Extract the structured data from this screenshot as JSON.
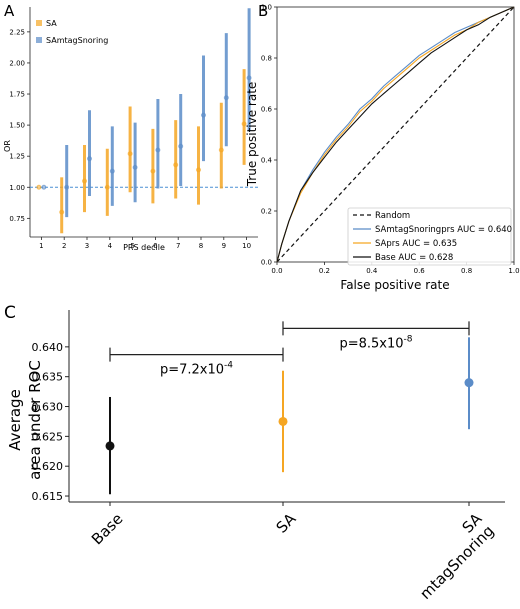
{
  "colors": {
    "sa": "#f5a623",
    "sam": "#5b8cc8",
    "base": "#111111",
    "random": "#111111",
    "ref": "#4a8fd4"
  },
  "chart_data": [
    {
      "panel_label": "A",
      "type": "scatter",
      "xlabel": "PRS decile",
      "ylabel": "OR",
      "xlim": [
        0.5,
        10.5
      ],
      "ylim": [
        0.6,
        2.45
      ],
      "x_ticks": [
        "1",
        "2",
        "3",
        "4",
        "5",
        "6",
        "7",
        "8",
        "9",
        "10"
      ],
      "y_ticks": [
        "0.75",
        "1.00",
        "1.25",
        "1.50",
        "1.75",
        "2.00",
        "2.25"
      ],
      "reference_line": 1.0,
      "legend_position": "top-left",
      "series": [
        {
          "name": "SA",
          "color": "#f5a623",
          "points": [
            {
              "x": 1,
              "y": 1.0,
              "lo": 1.0,
              "hi": 1.0
            },
            {
              "x": 2,
              "y": 0.8,
              "lo": 0.63,
              "hi": 1.08
            },
            {
              "x": 3,
              "y": 1.05,
              "lo": 0.8,
              "hi": 1.34
            },
            {
              "x": 4,
              "y": 1.0,
              "lo": 0.77,
              "hi": 1.31
            },
            {
              "x": 5,
              "y": 1.27,
              "lo": 0.96,
              "hi": 1.65
            },
            {
              "x": 6,
              "y": 1.13,
              "lo": 0.87,
              "hi": 1.47
            },
            {
              "x": 7,
              "y": 1.18,
              "lo": 0.91,
              "hi": 1.54
            },
            {
              "x": 8,
              "y": 1.14,
              "lo": 0.86,
              "hi": 1.49
            },
            {
              "x": 9,
              "y": 1.3,
              "lo": 0.99,
              "hi": 1.68
            },
            {
              "x": 10,
              "y": 1.51,
              "lo": 1.18,
              "hi": 1.95
            }
          ]
        },
        {
          "name": "SAmtagSnoring",
          "color": "#5b8cc8",
          "points": [
            {
              "x": 1,
              "y": 1.0,
              "lo": 1.0,
              "hi": 1.0
            },
            {
              "x": 2,
              "y": 1.0,
              "lo": 0.76,
              "hi": 1.34
            },
            {
              "x": 3,
              "y": 1.23,
              "lo": 0.93,
              "hi": 1.62
            },
            {
              "x": 4,
              "y": 1.13,
              "lo": 0.85,
              "hi": 1.49
            },
            {
              "x": 5,
              "y": 1.16,
              "lo": 0.88,
              "hi": 1.52
            },
            {
              "x": 6,
              "y": 1.3,
              "lo": 0.99,
              "hi": 1.71
            },
            {
              "x": 7,
              "y": 1.33,
              "lo": 1.01,
              "hi": 1.75
            },
            {
              "x": 8,
              "y": 1.58,
              "lo": 1.21,
              "hi": 2.06
            },
            {
              "x": 9,
              "y": 1.72,
              "lo": 1.33,
              "hi": 2.24
            },
            {
              "x": 10,
              "y": 1.88,
              "lo": 1.45,
              "hi": 2.44
            }
          ]
        }
      ]
    },
    {
      "panel_label": "B",
      "type": "line",
      "xlabel": "False positive rate",
      "ylabel": "True positive rate",
      "xlim": [
        0,
        1
      ],
      "ylim": [
        0,
        1
      ],
      "x_ticks": [
        "0.0",
        "0.2",
        "0.4",
        "0.6",
        "0.8",
        "1.0"
      ],
      "y_ticks": [
        "0.0",
        "0.2",
        "0.4",
        "0.6",
        "0.8",
        "1.0"
      ],
      "legend_position": "bottom-right",
      "series": [
        {
          "name": "Random",
          "color": "#111111",
          "dashed": true,
          "x": [
            0,
            1
          ],
          "y": [
            0,
            1
          ]
        },
        {
          "name": "SAmtagSnoringprs AUC = 0.640",
          "color": "#5b8cc8",
          "dashed": false,
          "x": [
            0,
            0.02,
            0.05,
            0.1,
            0.15,
            0.2,
            0.25,
            0.3,
            0.35,
            0.4,
            0.45,
            0.5,
            0.55,
            0.6,
            0.65,
            0.7,
            0.75,
            0.8,
            0.85,
            0.9,
            0.95,
            1.0
          ],
          "y": [
            0,
            0.07,
            0.16,
            0.28,
            0.36,
            0.43,
            0.49,
            0.54,
            0.6,
            0.64,
            0.69,
            0.73,
            0.77,
            0.81,
            0.84,
            0.87,
            0.9,
            0.92,
            0.94,
            0.96,
            0.98,
            1.0
          ]
        },
        {
          "name": "SAprs AUC = 0.635",
          "color": "#f5a623",
          "dashed": false,
          "x": [
            0,
            0.02,
            0.05,
            0.1,
            0.15,
            0.2,
            0.25,
            0.3,
            0.35,
            0.4,
            0.45,
            0.5,
            0.55,
            0.6,
            0.65,
            0.7,
            0.75,
            0.8,
            0.85,
            0.9,
            0.95,
            1.0
          ],
          "y": [
            0,
            0.07,
            0.16,
            0.27,
            0.35,
            0.42,
            0.48,
            0.53,
            0.59,
            0.63,
            0.68,
            0.72,
            0.76,
            0.8,
            0.83,
            0.86,
            0.89,
            0.91,
            0.94,
            0.96,
            0.98,
            1.0
          ]
        },
        {
          "name": "Base AUC = 0.628",
          "color": "#111111",
          "dashed": false,
          "x": [
            0,
            0.02,
            0.05,
            0.1,
            0.15,
            0.2,
            0.25,
            0.3,
            0.35,
            0.4,
            0.45,
            0.5,
            0.55,
            0.6,
            0.65,
            0.7,
            0.75,
            0.8,
            0.85,
            0.9,
            0.95,
            1.0
          ],
          "y": [
            0,
            0.07,
            0.16,
            0.28,
            0.35,
            0.41,
            0.47,
            0.52,
            0.57,
            0.62,
            0.66,
            0.7,
            0.74,
            0.78,
            0.82,
            0.85,
            0.88,
            0.91,
            0.93,
            0.96,
            0.98,
            1.0
          ]
        }
      ]
    },
    {
      "panel_label": "C",
      "type": "scatter",
      "xlabel": "",
      "ylabel_lines": [
        "Average",
        "area under ROC"
      ],
      "ylim": [
        0.614,
        0.6445
      ],
      "y_ticks": [
        "0.615",
        "0.620",
        "0.625",
        "0.630",
        "0.635",
        "0.640"
      ],
      "categories": [
        "Base",
        "SA",
        "SA mtagSnoring"
      ],
      "category_label_lines": [
        [
          "Base"
        ],
        [
          "SA"
        ],
        [
          "SA",
          "mtagSnoring"
        ]
      ],
      "points": [
        {
          "category": "Base",
          "y": 0.6234,
          "lo": 0.6153,
          "hi": 0.6316,
          "color": "#111111"
        },
        {
          "category": "SA",
          "y": 0.6275,
          "lo": 0.619,
          "hi": 0.636,
          "color": "#f5a623"
        },
        {
          "category": "SA mtagSnoring",
          "y": 0.634,
          "lo": 0.6262,
          "hi": 0.6416,
          "color": "#5b8cc8"
        }
      ],
      "annotations": [
        {
          "from": "Base",
          "to": "SA",
          "level": 0.6387,
          "text": "p=7.2x10",
          "exponent": "-4"
        },
        {
          "from": "SA",
          "to": "SA mtagSnoring",
          "level": 0.6431,
          "text": "p=8.5x10",
          "exponent": "-8"
        }
      ]
    }
  ]
}
